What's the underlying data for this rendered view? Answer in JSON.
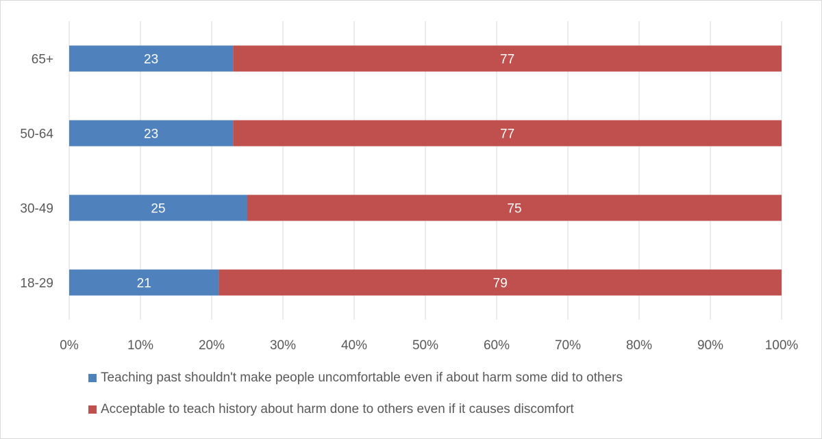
{
  "chart_data": {
    "type": "bar",
    "orientation": "horizontal",
    "stacked": true,
    "percent": true,
    "categories": [
      "65+",
      "50-64",
      "30-49",
      "18-29"
    ],
    "series": [
      {
        "name": "Teaching past shouldn't make people uncomfortable even if about harm some did to others",
        "values": [
          23,
          23,
          25,
          21
        ],
        "color": "#4f81bd"
      },
      {
        "name": "Acceptable to teach history about harm done to others even if it causes discomfort",
        "values": [
          77,
          77,
          75,
          79
        ],
        "color": "#c0504d"
      }
    ],
    "x_ticks": [
      "0%",
      "10%",
      "20%",
      "30%",
      "40%",
      "50%",
      "60%",
      "70%",
      "80%",
      "90%",
      "100%"
    ],
    "xlim": [
      0,
      100
    ],
    "grid": "vertical",
    "legend_position": "bottom",
    "title": "",
    "xlabel": "",
    "ylabel": ""
  }
}
